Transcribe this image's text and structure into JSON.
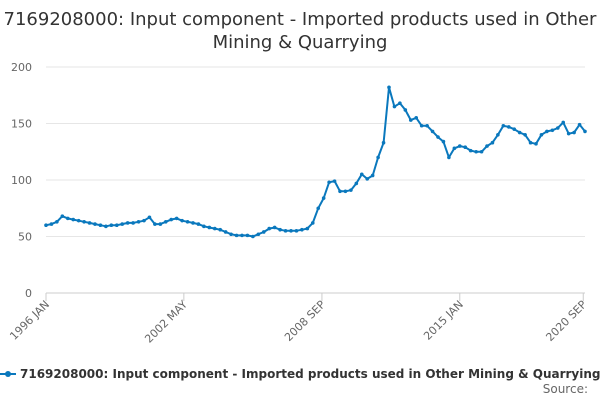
{
  "chart_data": {
    "type": "line",
    "title": "7169208000: Input component - Imported products used in Other Mining & Quarrying",
    "xlabel": "",
    "ylabel": "",
    "ylim": [
      0,
      200
    ],
    "yticks": [
      0,
      50,
      100,
      150,
      200
    ],
    "xlim": [
      1996.0,
      2020.75
    ],
    "xticks": [
      {
        "label": "1996 JAN",
        "value": 1996.0
      },
      {
        "label": "2002 MAY",
        "value": 2002.33
      },
      {
        "label": "2008 SEP",
        "value": 2008.67
      },
      {
        "label": "2015 JAN",
        "value": 2015.0
      },
      {
        "label": "2020 SEP",
        "value": 2020.67
      }
    ],
    "grid": true,
    "legend_position": "bottom",
    "series": [
      {
        "name": "7169208000: Input component - Imported products used in Other Mining & Quarrying",
        "color": "#0a78bd",
        "x": [
          1996.0,
          1996.25,
          1996.5,
          1996.75,
          1997.0,
          1997.25,
          1997.5,
          1997.75,
          1998.0,
          1998.25,
          1998.5,
          1998.75,
          1999.0,
          1999.25,
          1999.5,
          1999.75,
          2000.0,
          2000.25,
          2000.5,
          2000.75,
          2001.0,
          2001.25,
          2001.5,
          2001.75,
          2002.0,
          2002.25,
          2002.5,
          2002.75,
          2003.0,
          2003.25,
          2003.5,
          2003.75,
          2004.0,
          2004.25,
          2004.5,
          2004.75,
          2005.0,
          2005.25,
          2005.5,
          2005.75,
          2006.0,
          2006.25,
          2006.5,
          2006.75,
          2007.0,
          2007.25,
          2007.5,
          2007.75,
          2008.0,
          2008.25,
          2008.5,
          2008.75,
          2009.0,
          2009.25,
          2009.5,
          2009.75,
          2010.0,
          2010.25,
          2010.5,
          2010.75,
          2011.0,
          2011.25,
          2011.5,
          2011.75,
          2012.0,
          2012.25,
          2012.5,
          2012.75,
          2013.0,
          2013.25,
          2013.5,
          2013.75,
          2014.0,
          2014.25,
          2014.5,
          2014.75,
          2015.0,
          2015.25,
          2015.5,
          2015.75,
          2016.0,
          2016.25,
          2016.5,
          2016.75,
          2017.0,
          2017.25,
          2017.5,
          2017.75,
          2018.0,
          2018.25,
          2018.5,
          2018.75,
          2019.0,
          2019.25,
          2019.5,
          2019.75,
          2020.0,
          2020.25,
          2020.5,
          2020.75
        ],
        "values": [
          60,
          61,
          63,
          68,
          66,
          65,
          64,
          63,
          62,
          61,
          60,
          59,
          60,
          60,
          61,
          62,
          62,
          63,
          64,
          67,
          61,
          61,
          63,
          65,
          66,
          64,
          63,
          62,
          61,
          59,
          58,
          57,
          56,
          54,
          52,
          51,
          51,
          51,
          50,
          52,
          54,
          57,
          58,
          56,
          55,
          55,
          55,
          56,
          57,
          62,
          75,
          84,
          98,
          99,
          90,
          90,
          91,
          97,
          105,
          101,
          104,
          120,
          133,
          182,
          165,
          168,
          162,
          153,
          155,
          148,
          148,
          143,
          138,
          134,
          120,
          128,
          130,
          129,
          126,
          125,
          125,
          130,
          133,
          140,
          148,
          147,
          145,
          142,
          140,
          133,
          132,
          140,
          143,
          144,
          146,
          151,
          141,
          142,
          149,
          143
        ]
      }
    ],
    "legend_label": "7169208000: Input component - Imported products used in Other Mining & Quarrying",
    "source_label": "Source:"
  }
}
